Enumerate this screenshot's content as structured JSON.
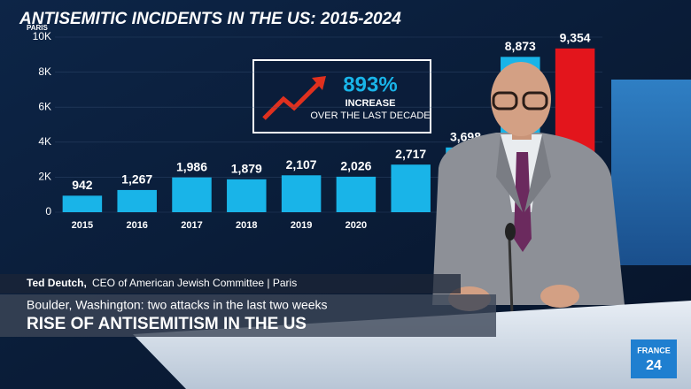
{
  "chart_data": {
    "type": "bar",
    "title": "ANTISEMITIC INCIDENTS IN THE US: 2015-2024",
    "location_tag": "PARIS",
    "categories": [
      "2015",
      "2016",
      "2017",
      "2018",
      "2019",
      "2020",
      null,
      null,
      null,
      null
    ],
    "values": [
      942,
      1267,
      1986,
      1879,
      2107,
      2026,
      2717,
      3698,
      8873,
      9354
    ],
    "value_labels": [
      "942",
      "1,267",
      "1,986",
      "1,879",
      "2,107",
      "2,026",
      "2,717",
      "3,698",
      "8,873",
      "9,354"
    ],
    "colors": [
      "#19b4e8",
      "#19b4e8",
      "#19b4e8",
      "#19b4e8",
      "#19b4e8",
      "#19b4e8",
      "#19b4e8",
      "#19b4e8",
      "#19b4e8",
      "#e3151c"
    ],
    "ylim": [
      0,
      10000
    ],
    "yticks": [
      0,
      {
        "value": 2000,
        "label": "2K"
      },
      {
        "value": 4000,
        "label": "4K"
      },
      {
        "value": 6000,
        "label": "6K"
      },
      {
        "value": 8000,
        "label": "8K"
      },
      {
        "value": 10000,
        "label": "10K"
      }
    ],
    "grid": true,
    "annotation": {
      "value": "893%",
      "line1": "INCREASE",
      "line2": "OVER THE LAST DECADE"
    }
  },
  "lower_third": {
    "name": "Ted Deutch,",
    "role": "CEO of American Jewish Committee | Paris",
    "subheadline": "Boulder, Washington: two attacks in the last two weeks",
    "headline": "RISE OF ANTISEMITISM IN THE US"
  },
  "logo": {
    "line1": "FRANCE",
    "line2": "24"
  }
}
